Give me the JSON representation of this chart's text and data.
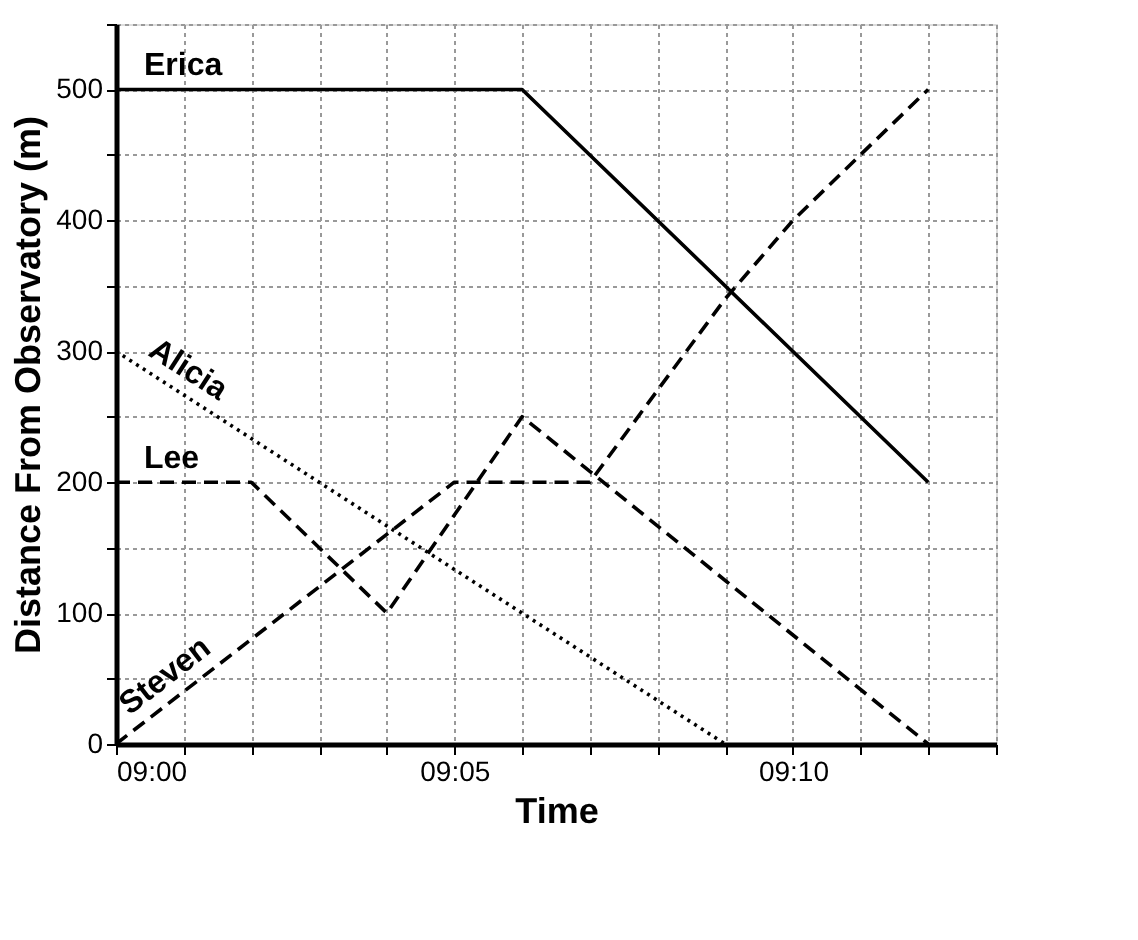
{
  "chart_data": {
    "type": "line",
    "xlabel": "Time",
    "ylabel": "Distance From Observatory (m)",
    "xlim": [
      9,
      9.2167
    ],
    "ylim": [
      0,
      550
    ],
    "xticks": [
      {
        "value": 9,
        "label": "09:00"
      },
      {
        "value": 9.0167,
        "label": null
      },
      {
        "value": 9.0333,
        "label": null
      },
      {
        "value": 9.05,
        "label": null
      },
      {
        "value": 9.0667,
        "label": null
      },
      {
        "value": 9.0833,
        "label": "09:05"
      },
      {
        "value": 9.1,
        "label": null
      },
      {
        "value": 9.1167,
        "label": null
      },
      {
        "value": 9.1333,
        "label": null
      },
      {
        "value": 9.15,
        "label": null
      },
      {
        "value": 9.1667,
        "label": "09:10"
      },
      {
        "value": 9.1833,
        "label": null
      },
      {
        "value": 9.2,
        "label": null
      },
      {
        "value": 9.2167,
        "label": null
      }
    ],
    "yticks": [
      0,
      {
        "value": 50,
        "label": null
      },
      100,
      {
        "value": 150,
        "label": null
      },
      200,
      {
        "value": 250,
        "label": null
      },
      300,
      {
        "value": 350,
        "label": null
      },
      400,
      {
        "value": 450,
        "label": null
      },
      500,
      {
        "value": 550,
        "label": null
      }
    ],
    "grid": true,
    "marker": "none",
    "series": [
      {
        "name": "Erica",
        "color": "#000000",
        "line_style": "solid",
        "x": [
          9,
          9.1,
          9.2
        ],
        "values": [
          500,
          500,
          200
        ]
      },
      {
        "name": "Alicia",
        "color": "#000000",
        "line_style": "dotted",
        "x": [
          9,
          9.15
        ],
        "values": [
          300,
          0
        ]
      },
      {
        "name": "Lee",
        "color": "#000000",
        "line_style": "dashed",
        "x": [
          9,
          9.0333,
          9.0667,
          9.1,
          9.2
        ],
        "values": [
          200,
          200,
          100,
          250,
          0
        ]
      },
      {
        "name": "Steven",
        "color": "#000000",
        "line_style": "dashed",
        "x": [
          9,
          9.0833,
          9.1167,
          9.1333,
          9.15,
          9.1667,
          9.1833,
          9.2
        ],
        "values": [
          0,
          200,
          200,
          270,
          340,
          400,
          450,
          500
        ]
      }
    ]
  }
}
